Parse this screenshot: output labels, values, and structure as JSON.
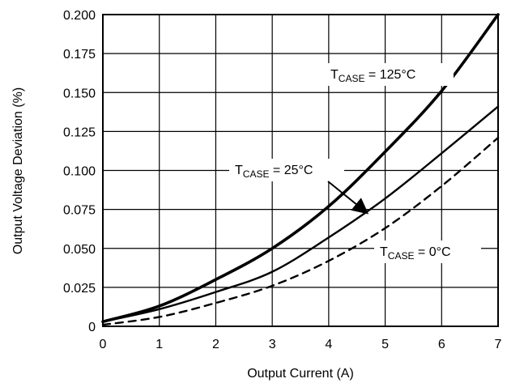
{
  "chart_data": {
    "type": "line",
    "title": "",
    "xlabel": "Output Current (A)",
    "ylabel": "Output Voltage Deviation (%)",
    "xlim": [
      0,
      7
    ],
    "ylim": [
      0,
      0.2
    ],
    "x_ticks": [
      "0",
      "1",
      "2",
      "3",
      "4",
      "5",
      "6",
      "7"
    ],
    "y_ticks": [
      "0",
      "0.025",
      "0.050",
      "0.075",
      "0.100",
      "0.125",
      "0.150",
      "0.175",
      "0.200"
    ],
    "grid": true,
    "legend": "none",
    "series": [
      {
        "name": "T_CASE = 125°C",
        "label_text": "T",
        "label_sub": "CASE",
        "label_rest": " = 125°C",
        "style": "solid-thick",
        "x": [
          0,
          1,
          2,
          3,
          4,
          5,
          6,
          7
        ],
        "y": [
          0.003,
          0.013,
          0.03,
          0.05,
          0.077,
          0.112,
          0.151,
          0.2
        ]
      },
      {
        "name": "T_CASE = 25°C",
        "label_text": "T",
        "label_sub": "CASE",
        "label_rest": " = 25°C",
        "style": "solid",
        "x": [
          0,
          1,
          2,
          3,
          4,
          5,
          6,
          7
        ],
        "y": [
          0.003,
          0.011,
          0.022,
          0.035,
          0.057,
          0.082,
          0.111,
          0.141
        ]
      },
      {
        "name": "T_CASE = 0°C",
        "label_text": "T",
        "label_sub": "CASE",
        "label_rest": " = 0°C",
        "style": "dashed",
        "x": [
          0,
          1,
          2,
          3,
          4,
          5,
          6,
          7
        ],
        "y": [
          0.001,
          0.006,
          0.015,
          0.026,
          0.042,
          0.063,
          0.09,
          0.121
        ]
      }
    ]
  }
}
